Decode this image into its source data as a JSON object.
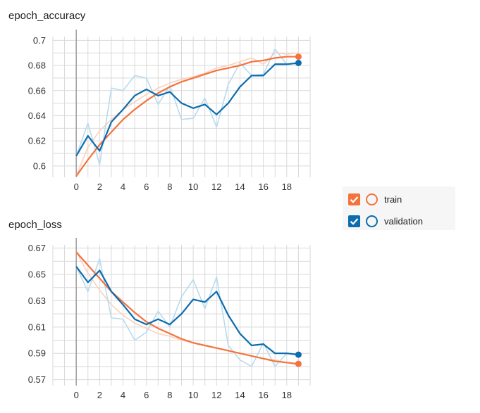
{
  "colors": {
    "train": "#f4733d",
    "validation": "#0b6cae",
    "train_raw": "#fbd0bd",
    "validation_raw": "#b7dbed",
    "grid": "#d9d9d9",
    "zero_axis": "#9e9e9e"
  },
  "legend": {
    "items": [
      {
        "label": "train",
        "color": "#f4733d",
        "checked": true,
        "icon": "check-icon"
      },
      {
        "label": "validation",
        "color": "#0b6cae",
        "checked": true,
        "icon": "check-icon"
      }
    ]
  },
  "chart_data": [
    {
      "type": "line",
      "title": "epoch_accuracy",
      "x": [
        0,
        1,
        2,
        3,
        4,
        5,
        6,
        7,
        8,
        9,
        10,
        11,
        12,
        13,
        14,
        15,
        16,
        17,
        18,
        19
      ],
      "xlim": [
        -2,
        20
      ],
      "ylim": [
        0.591,
        0.703
      ],
      "xticks": [
        0,
        2,
        4,
        6,
        8,
        10,
        12,
        14,
        16,
        18
      ],
      "yticks": [
        0.6,
        0.62,
        0.64,
        0.66,
        0.68,
        0.7
      ],
      "yticklabels": [
        "0.6",
        "0.62",
        "0.64",
        "0.66",
        "0.68",
        "0.7"
      ],
      "series": [
        {
          "name": "train (raw)",
          "role": "train_raw",
          "values": [
            0.592,
            0.615,
            0.628,
            0.637,
            0.645,
            0.651,
            0.657,
            0.662,
            0.666,
            0.669,
            0.671,
            0.674,
            0.678,
            0.68,
            0.683,
            0.686,
            0.681,
            0.69,
            0.689,
            0.69
          ]
        },
        {
          "name": "validation (raw)",
          "role": "validation_raw",
          "values": [
            0.608,
            0.634,
            0.601,
            0.662,
            0.66,
            0.672,
            0.67,
            0.649,
            0.664,
            0.637,
            0.638,
            0.654,
            0.631,
            0.665,
            0.682,
            0.672,
            0.673,
            0.693,
            0.681,
            0.682
          ]
        },
        {
          "name": "train",
          "role": "train",
          "values": [
            0.592,
            0.605,
            0.617,
            0.627,
            0.637,
            0.645,
            0.652,
            0.658,
            0.663,
            0.667,
            0.67,
            0.673,
            0.676,
            0.678,
            0.68,
            0.683,
            0.684,
            0.686,
            0.687,
            0.687
          ]
        },
        {
          "name": "validation",
          "role": "validation",
          "values": [
            0.608,
            0.624,
            0.612,
            0.635,
            0.645,
            0.656,
            0.661,
            0.656,
            0.659,
            0.65,
            0.646,
            0.649,
            0.641,
            0.65,
            0.663,
            0.672,
            0.672,
            0.681,
            0.681,
            0.682
          ]
        }
      ]
    },
    {
      "type": "line",
      "title": "epoch_loss",
      "x": [
        0,
        1,
        2,
        3,
        4,
        5,
        6,
        7,
        8,
        9,
        10,
        11,
        12,
        13,
        14,
        15,
        16,
        17,
        18,
        19
      ],
      "xlim": [
        -2,
        20
      ],
      "ylim": [
        0.5655,
        0.6725
      ],
      "xticks": [
        0,
        2,
        4,
        6,
        8,
        10,
        12,
        14,
        16,
        18
      ],
      "yticks": [
        0.57,
        0.59,
        0.61,
        0.63,
        0.65,
        0.67
      ],
      "yticklabels": [
        "0.57",
        "0.59",
        "0.61",
        "0.63",
        "0.65",
        "0.67"
      ],
      "series": [
        {
          "name": "train (raw)",
          "role": "train_raw",
          "values": [
            0.667,
            0.651,
            0.638,
            0.627,
            0.619,
            0.613,
            0.609,
            0.605,
            0.603,
            0.6,
            0.598,
            0.596,
            0.594,
            0.592,
            0.59,
            0.588,
            0.586,
            0.585,
            0.583,
            0.581
          ]
        },
        {
          "name": "validation (raw)",
          "role": "validation_raw",
          "values": [
            0.656,
            0.637,
            0.662,
            0.617,
            0.616,
            0.6,
            0.606,
            0.622,
            0.61,
            0.633,
            0.646,
            0.624,
            0.648,
            0.596,
            0.585,
            0.58,
            0.598,
            0.58,
            0.59,
            0.589
          ]
        },
        {
          "name": "train",
          "role": "train",
          "values": [
            0.667,
            0.657,
            0.647,
            0.637,
            0.629,
            0.621,
            0.614,
            0.609,
            0.605,
            0.601,
            0.598,
            0.596,
            0.594,
            0.592,
            0.59,
            0.588,
            0.586,
            0.584,
            0.583,
            0.582
          ]
        },
        {
          "name": "validation",
          "role": "validation",
          "values": [
            0.656,
            0.644,
            0.653,
            0.637,
            0.627,
            0.616,
            0.612,
            0.616,
            0.612,
            0.62,
            0.631,
            0.629,
            0.637,
            0.619,
            0.605,
            0.596,
            0.597,
            0.59,
            0.59,
            0.589
          ]
        }
      ]
    }
  ]
}
